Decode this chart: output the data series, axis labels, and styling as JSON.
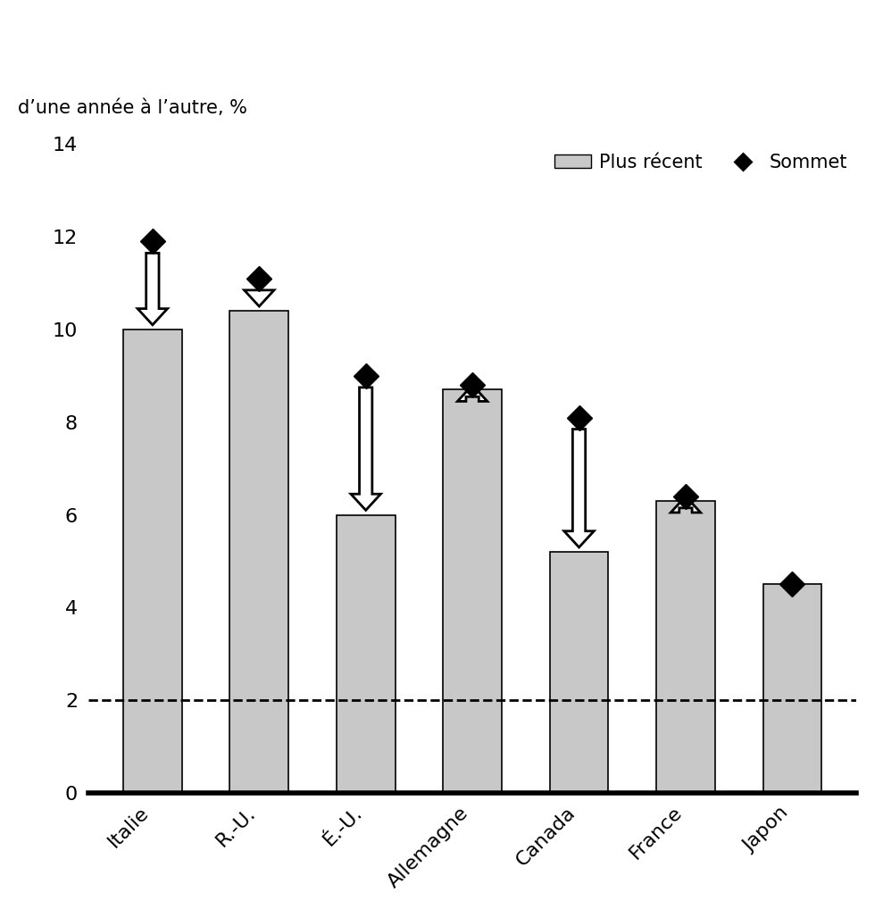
{
  "categories": [
    "Italie",
    "R.-U.",
    "É.-U.",
    "Allemagne",
    "Canada",
    "France",
    "Japon"
  ],
  "bar_values": [
    10.0,
    10.4,
    6.0,
    8.7,
    5.2,
    6.3,
    4.5
  ],
  "peak_values": [
    11.9,
    11.1,
    9.0,
    8.8,
    8.1,
    6.4,
    4.5
  ],
  "bar_color": "#c8c8c8",
  "bar_edgecolor": "#000000",
  "peak_marker_color": "#000000",
  "arrow_facecolor": "#ffffff",
  "arrow_edgecolor": "#000000",
  "dashed_line_y": 2.0,
  "ylim": [
    0,
    14
  ],
  "yticks": [
    0,
    2,
    4,
    6,
    8,
    10,
    12,
    14
  ],
  "ylabel": "d’une année à l’autre, %",
  "legend_bar_label": "Plus récent",
  "legend_peak_label": "Sommet",
  "tick_fontsize": 16,
  "label_fontsize": 16,
  "legend_fontsize": 15,
  "ylabel_fontsize": 15
}
